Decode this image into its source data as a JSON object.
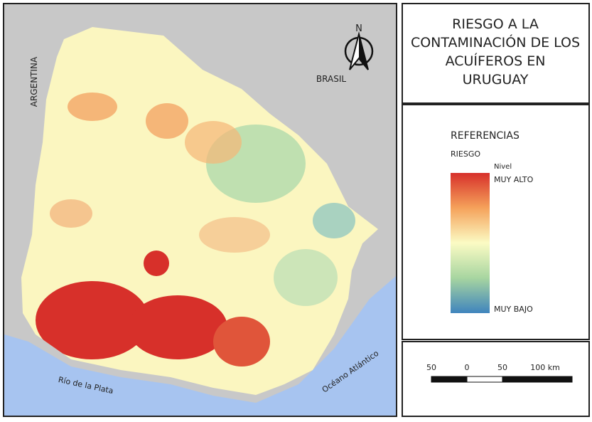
{
  "map": {
    "labels": {
      "argentina": "ARGENTINA",
      "brasil": "BRASIL",
      "north": "N",
      "rio": "Río de la Plata",
      "oceano": "Océano Atlántico"
    }
  },
  "title": [
    "RIESGO A LA",
    "CONTAMINACIÓN DE LOS",
    "ACUÍFEROS EN",
    "URUGUAY"
  ],
  "legend": {
    "heading": "REFERENCIAS",
    "layer": "RIESGO",
    "field": "Nivel",
    "high": "MUY ALTO",
    "low": "MUY BAJO"
  },
  "scale": {
    "labels": [
      "50",
      "0",
      "50",
      "100 km"
    ]
  }
}
